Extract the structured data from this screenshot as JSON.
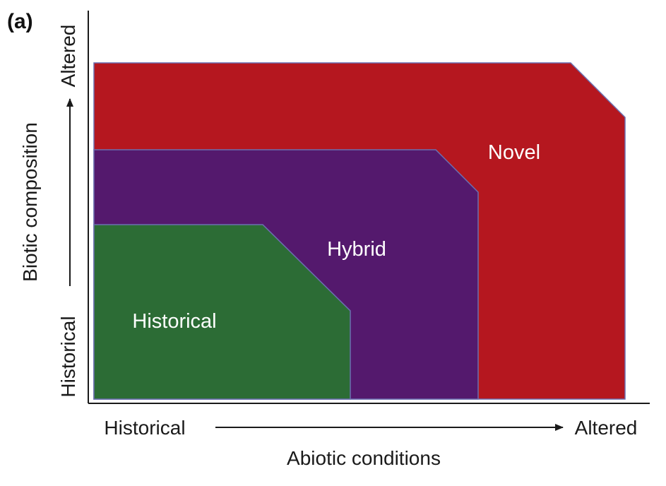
{
  "panel_label": "(a)",
  "colors": {
    "novel": "#B5171F",
    "hybrid": "#54196D",
    "historical": "#2C6C35",
    "axis": "#1a1a1a"
  },
  "regions": {
    "novel": "Novel",
    "hybrid": "Hybrid",
    "historical": "Historical"
  },
  "x_axis": {
    "title": "Abiotic conditions",
    "low": "Historical",
    "high": "Altered"
  },
  "y_axis": {
    "title": "Biotic composition",
    "low": "Historical",
    "high": "Altered"
  }
}
